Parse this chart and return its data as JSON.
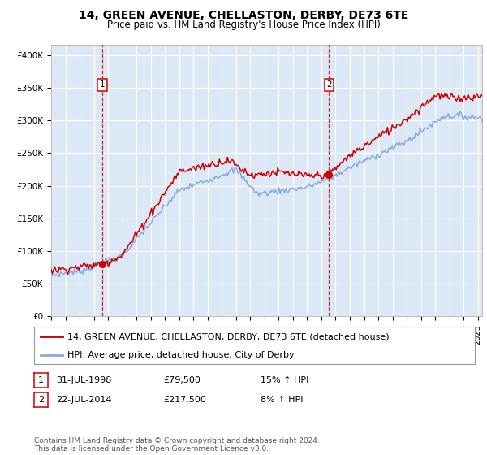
{
  "title": "14, GREEN AVENUE, CHELLASTON, DERBY, DE73 6TE",
  "subtitle": "Price paid vs. HM Land Registry's House Price Index (HPI)",
  "ylabel_ticks": [
    "£0",
    "£50K",
    "£100K",
    "£150K",
    "£200K",
    "£250K",
    "£300K",
    "£350K",
    "£400K"
  ],
  "ytick_vals": [
    0,
    50000,
    100000,
    150000,
    200000,
    250000,
    300000,
    350000,
    400000
  ],
  "ylim": [
    0,
    415000
  ],
  "xlim_start": 1995.0,
  "xlim_end": 2025.3,
  "bg_color": "#dce8f5",
  "grid_color": "#ffffff",
  "line1_color": "#cc0000",
  "line2_color": "#88aadd",
  "sale1_x": 1998.58,
  "sale1_y": 79500,
  "sale2_x": 2014.54,
  "sale2_y": 217500,
  "legend_line1": "14, GREEN AVENUE, CHELLASTON, DERBY, DE73 6TE (detached house)",
  "legend_line2": "HPI: Average price, detached house, City of Derby",
  "table_row1": [
    "1",
    "31-JUL-1998",
    "£79,500",
    "15% ↑ HPI"
  ],
  "table_row2": [
    "2",
    "22-JUL-2014",
    "£217,500",
    "8% ↑ HPI"
  ],
  "footnote": "Contains HM Land Registry data © Crown copyright and database right 2024.\nThis data is licensed under the Open Government Licence v3.0.",
  "title_fontsize": 10,
  "subtitle_fontsize": 8.5,
  "tick_fontsize": 7.5,
  "legend_fontsize": 8,
  "table_fontsize": 8,
  "footnote_fontsize": 6.5,
  "sale_box_color": "#cc0000"
}
